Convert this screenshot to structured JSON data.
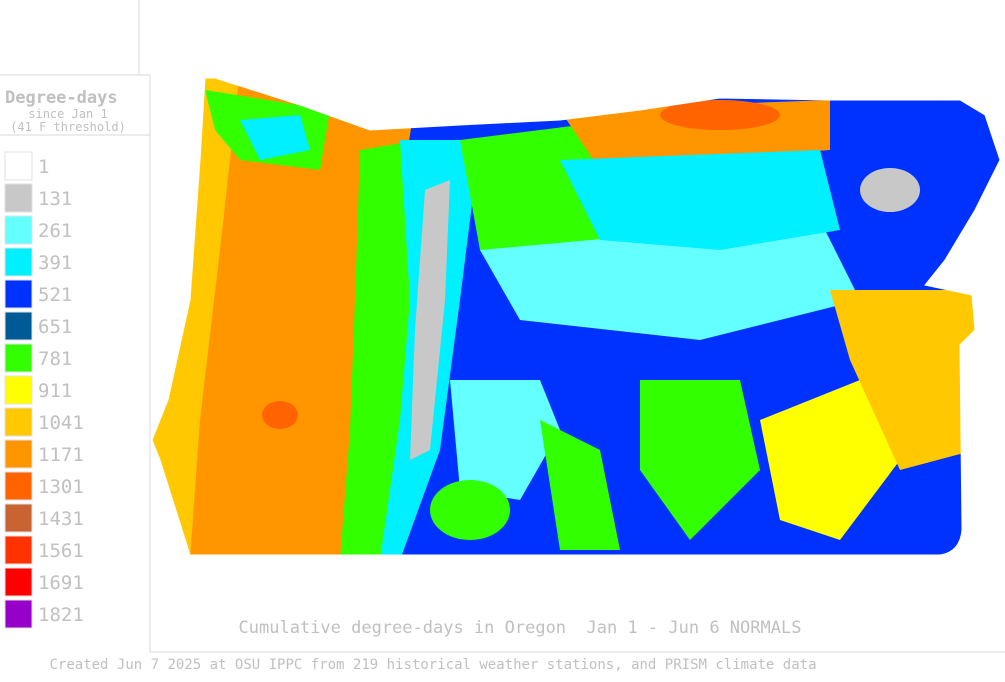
{
  "legend": {
    "title": "Degree-days",
    "subtitle": "since Jan 1",
    "note": "(41 F threshold)",
    "items": [
      {
        "value": 1,
        "color": "#ffffff"
      },
      {
        "value": 131,
        "color": "#c8c8c8"
      },
      {
        "value": 261,
        "color": "#64ffff"
      },
      {
        "value": 391,
        "color": "#00f0ff"
      },
      {
        "value": 521,
        "color": "#0032ff"
      },
      {
        "value": 651,
        "color": "#005a96"
      },
      {
        "value": 781,
        "color": "#32ff00"
      },
      {
        "value": 911,
        "color": "#ffff00"
      },
      {
        "value": 1041,
        "color": "#ffc800"
      },
      {
        "value": 1171,
        "color": "#ff9600"
      },
      {
        "value": 1301,
        "color": "#ff6400"
      },
      {
        "value": 1431,
        "color": "#c86432"
      },
      {
        "value": 1561,
        "color": "#ff3200"
      },
      {
        "value": 1691,
        "color": "#ff0000"
      },
      {
        "value": 1821,
        "color": "#9600c8"
      }
    ]
  },
  "map": {
    "caption": "Cumulative degree-days in Oregon  Jan 1 - Jun 6 NORMALS"
  },
  "footer": {
    "credit": "Created Jun 7 2025 at OSU IPPC from 219 historical weather stations, and PRISM climate data"
  }
}
